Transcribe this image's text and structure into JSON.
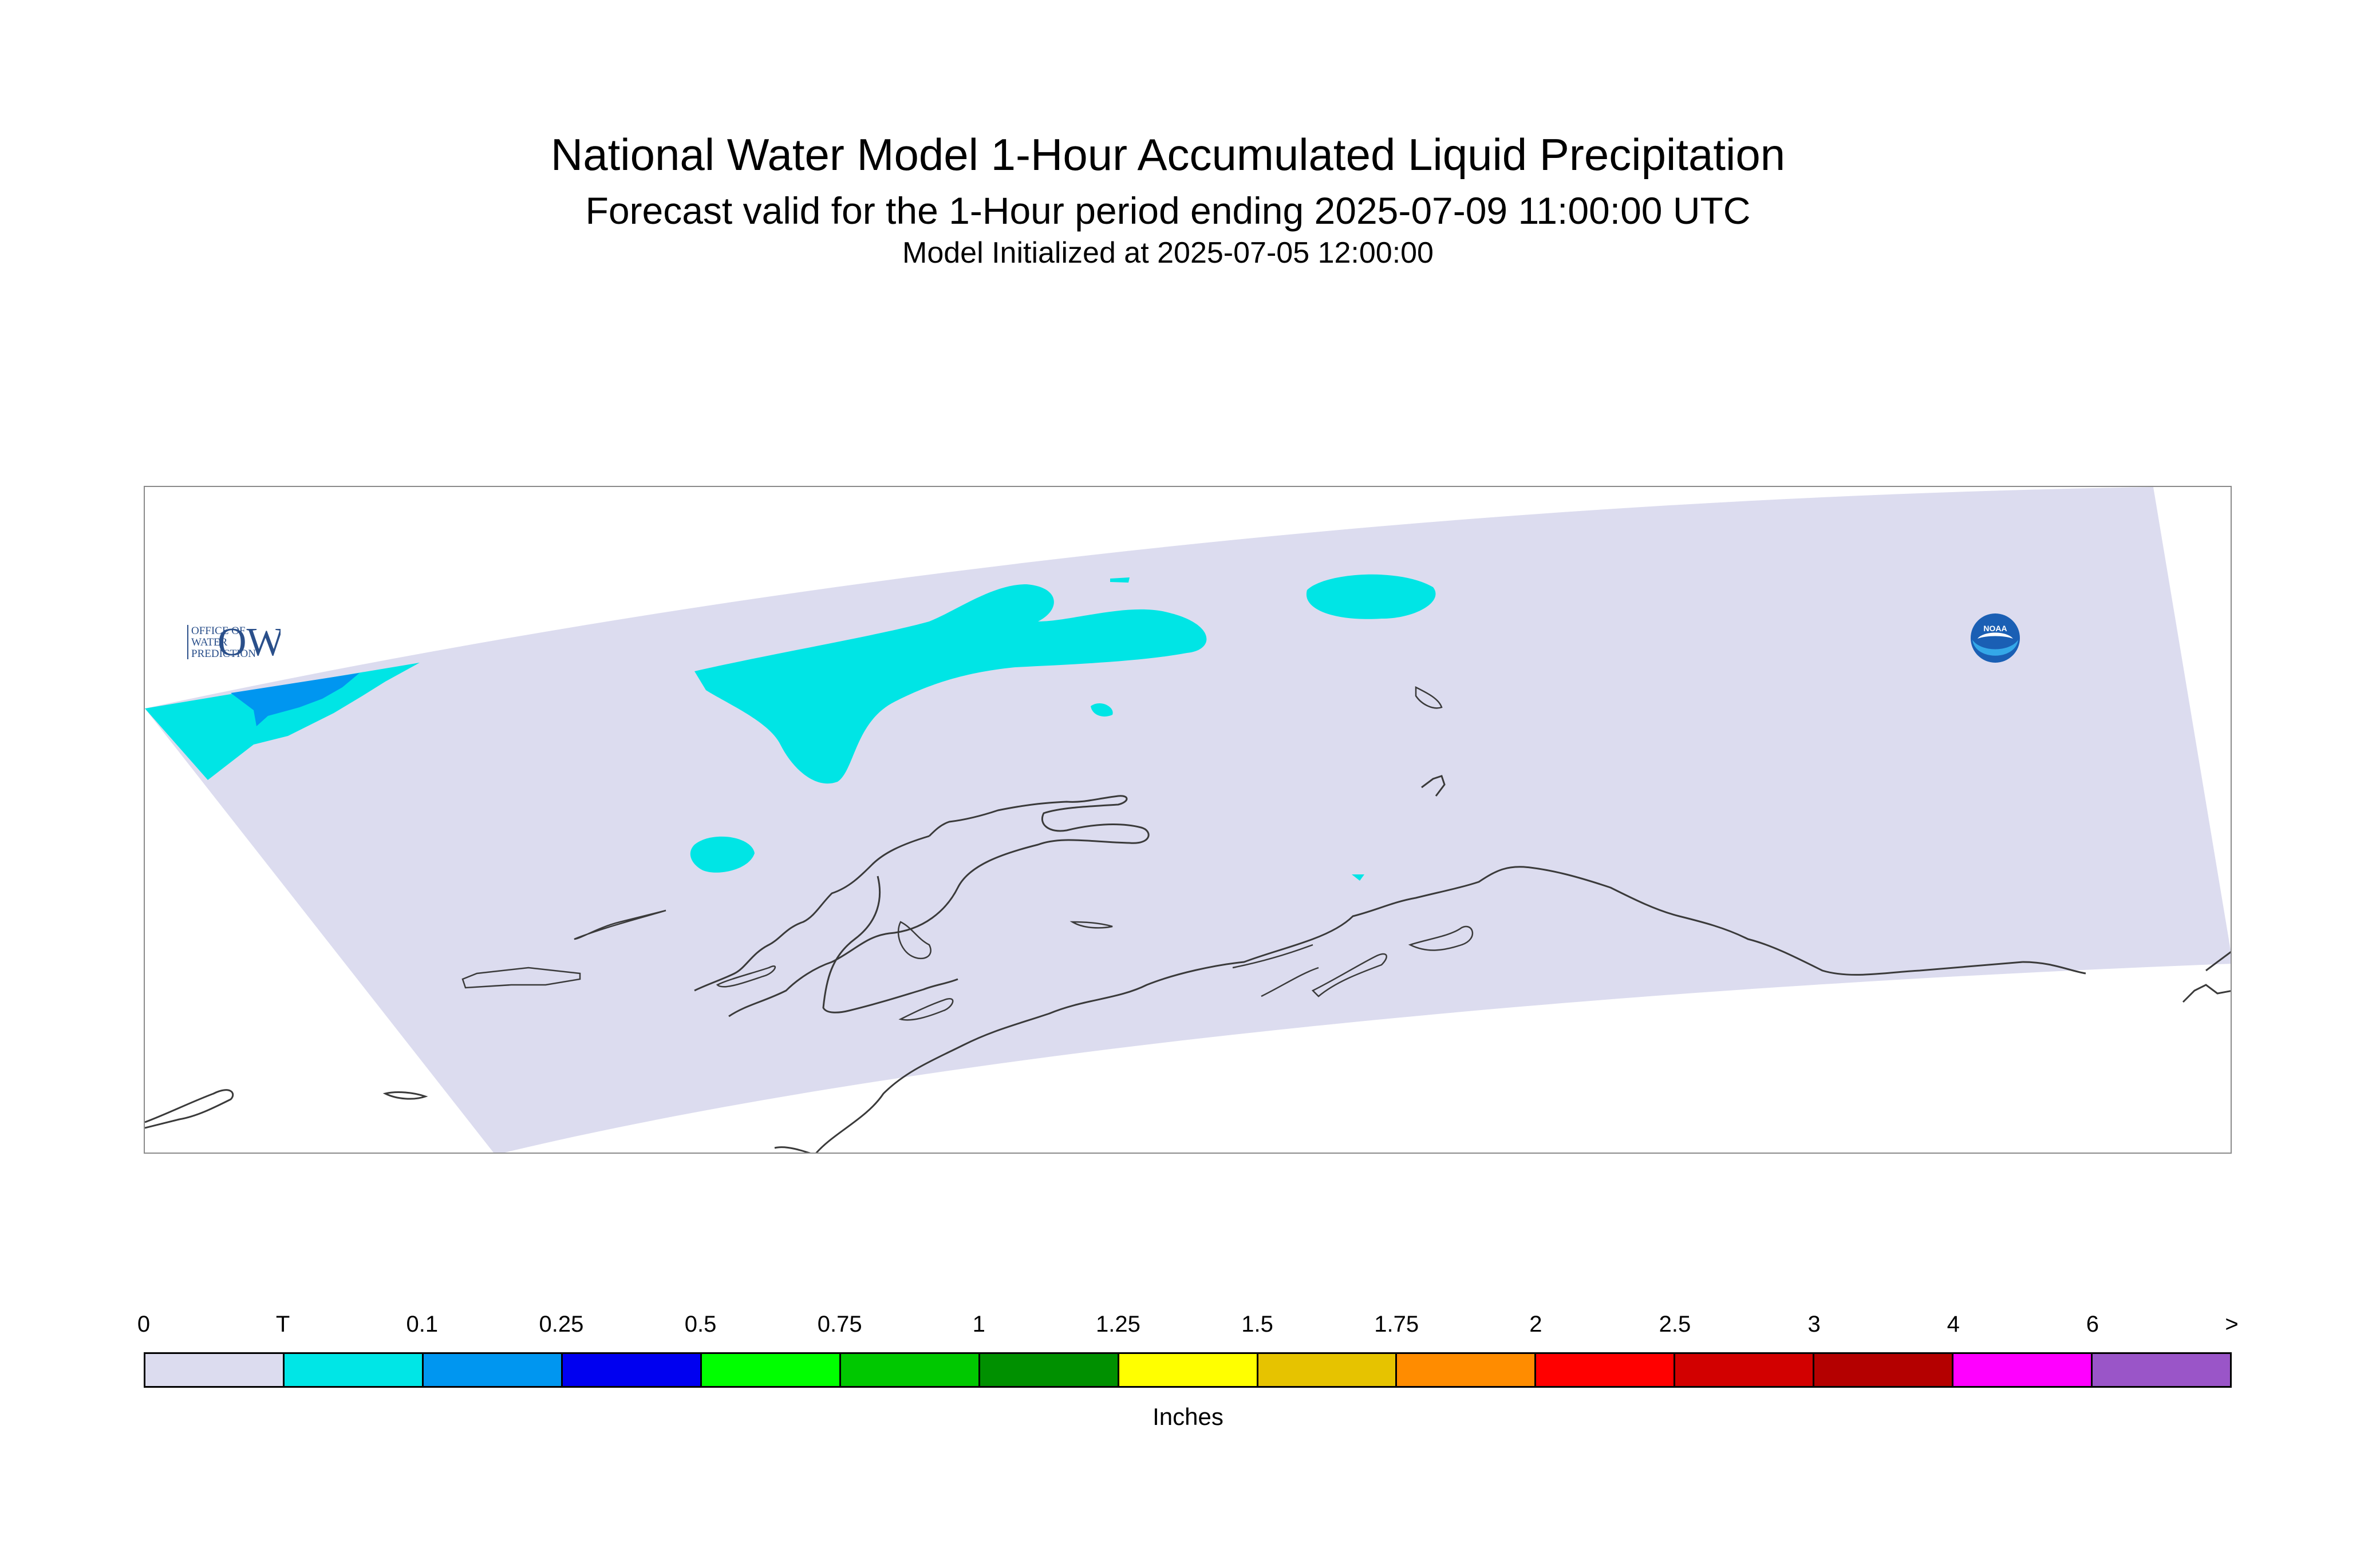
{
  "header": {
    "title": "National Water Model 1-Hour Accumulated Liquid Precipitation",
    "subtitle": "Forecast valid for the 1-Hour period ending 2025-07-09 11:00:00 UTC",
    "init_line": "Model Initialized at 2025-07-05 12:00:00"
  },
  "map": {
    "domain_fill": "#dcdcef",
    "coastline_color": "#3a3a3a",
    "precip_colors": {
      "trace": "#00e5e5",
      "tenth": "#0096f0"
    }
  },
  "logos": {
    "owp": {
      "mark": "OWP",
      "line1": "OFFICE OF",
      "line2": "WATER",
      "line3": "PREDICTION",
      "color": "#2a4f8a"
    },
    "noaa": {
      "text": "NOAA",
      "color": "#1a5fb4"
    }
  },
  "legend": {
    "unit": "Inches",
    "ticks": [
      "0",
      "T",
      "0.1",
      "0.25",
      "0.5",
      "0.75",
      "1",
      "1.25",
      "1.5",
      "1.75",
      "2",
      "2.5",
      "3",
      "4",
      "6",
      ">"
    ],
    "colors": [
      "#dcdcef",
      "#00e6e6",
      "#0096f0",
      "#0000f0",
      "#00ff00",
      "#00c800",
      "#009000",
      "#ffff00",
      "#e6c300",
      "#ff8c00",
      "#ff0000",
      "#d20000",
      "#b40000",
      "#ff00ff",
      "#9a55c8"
    ]
  }
}
